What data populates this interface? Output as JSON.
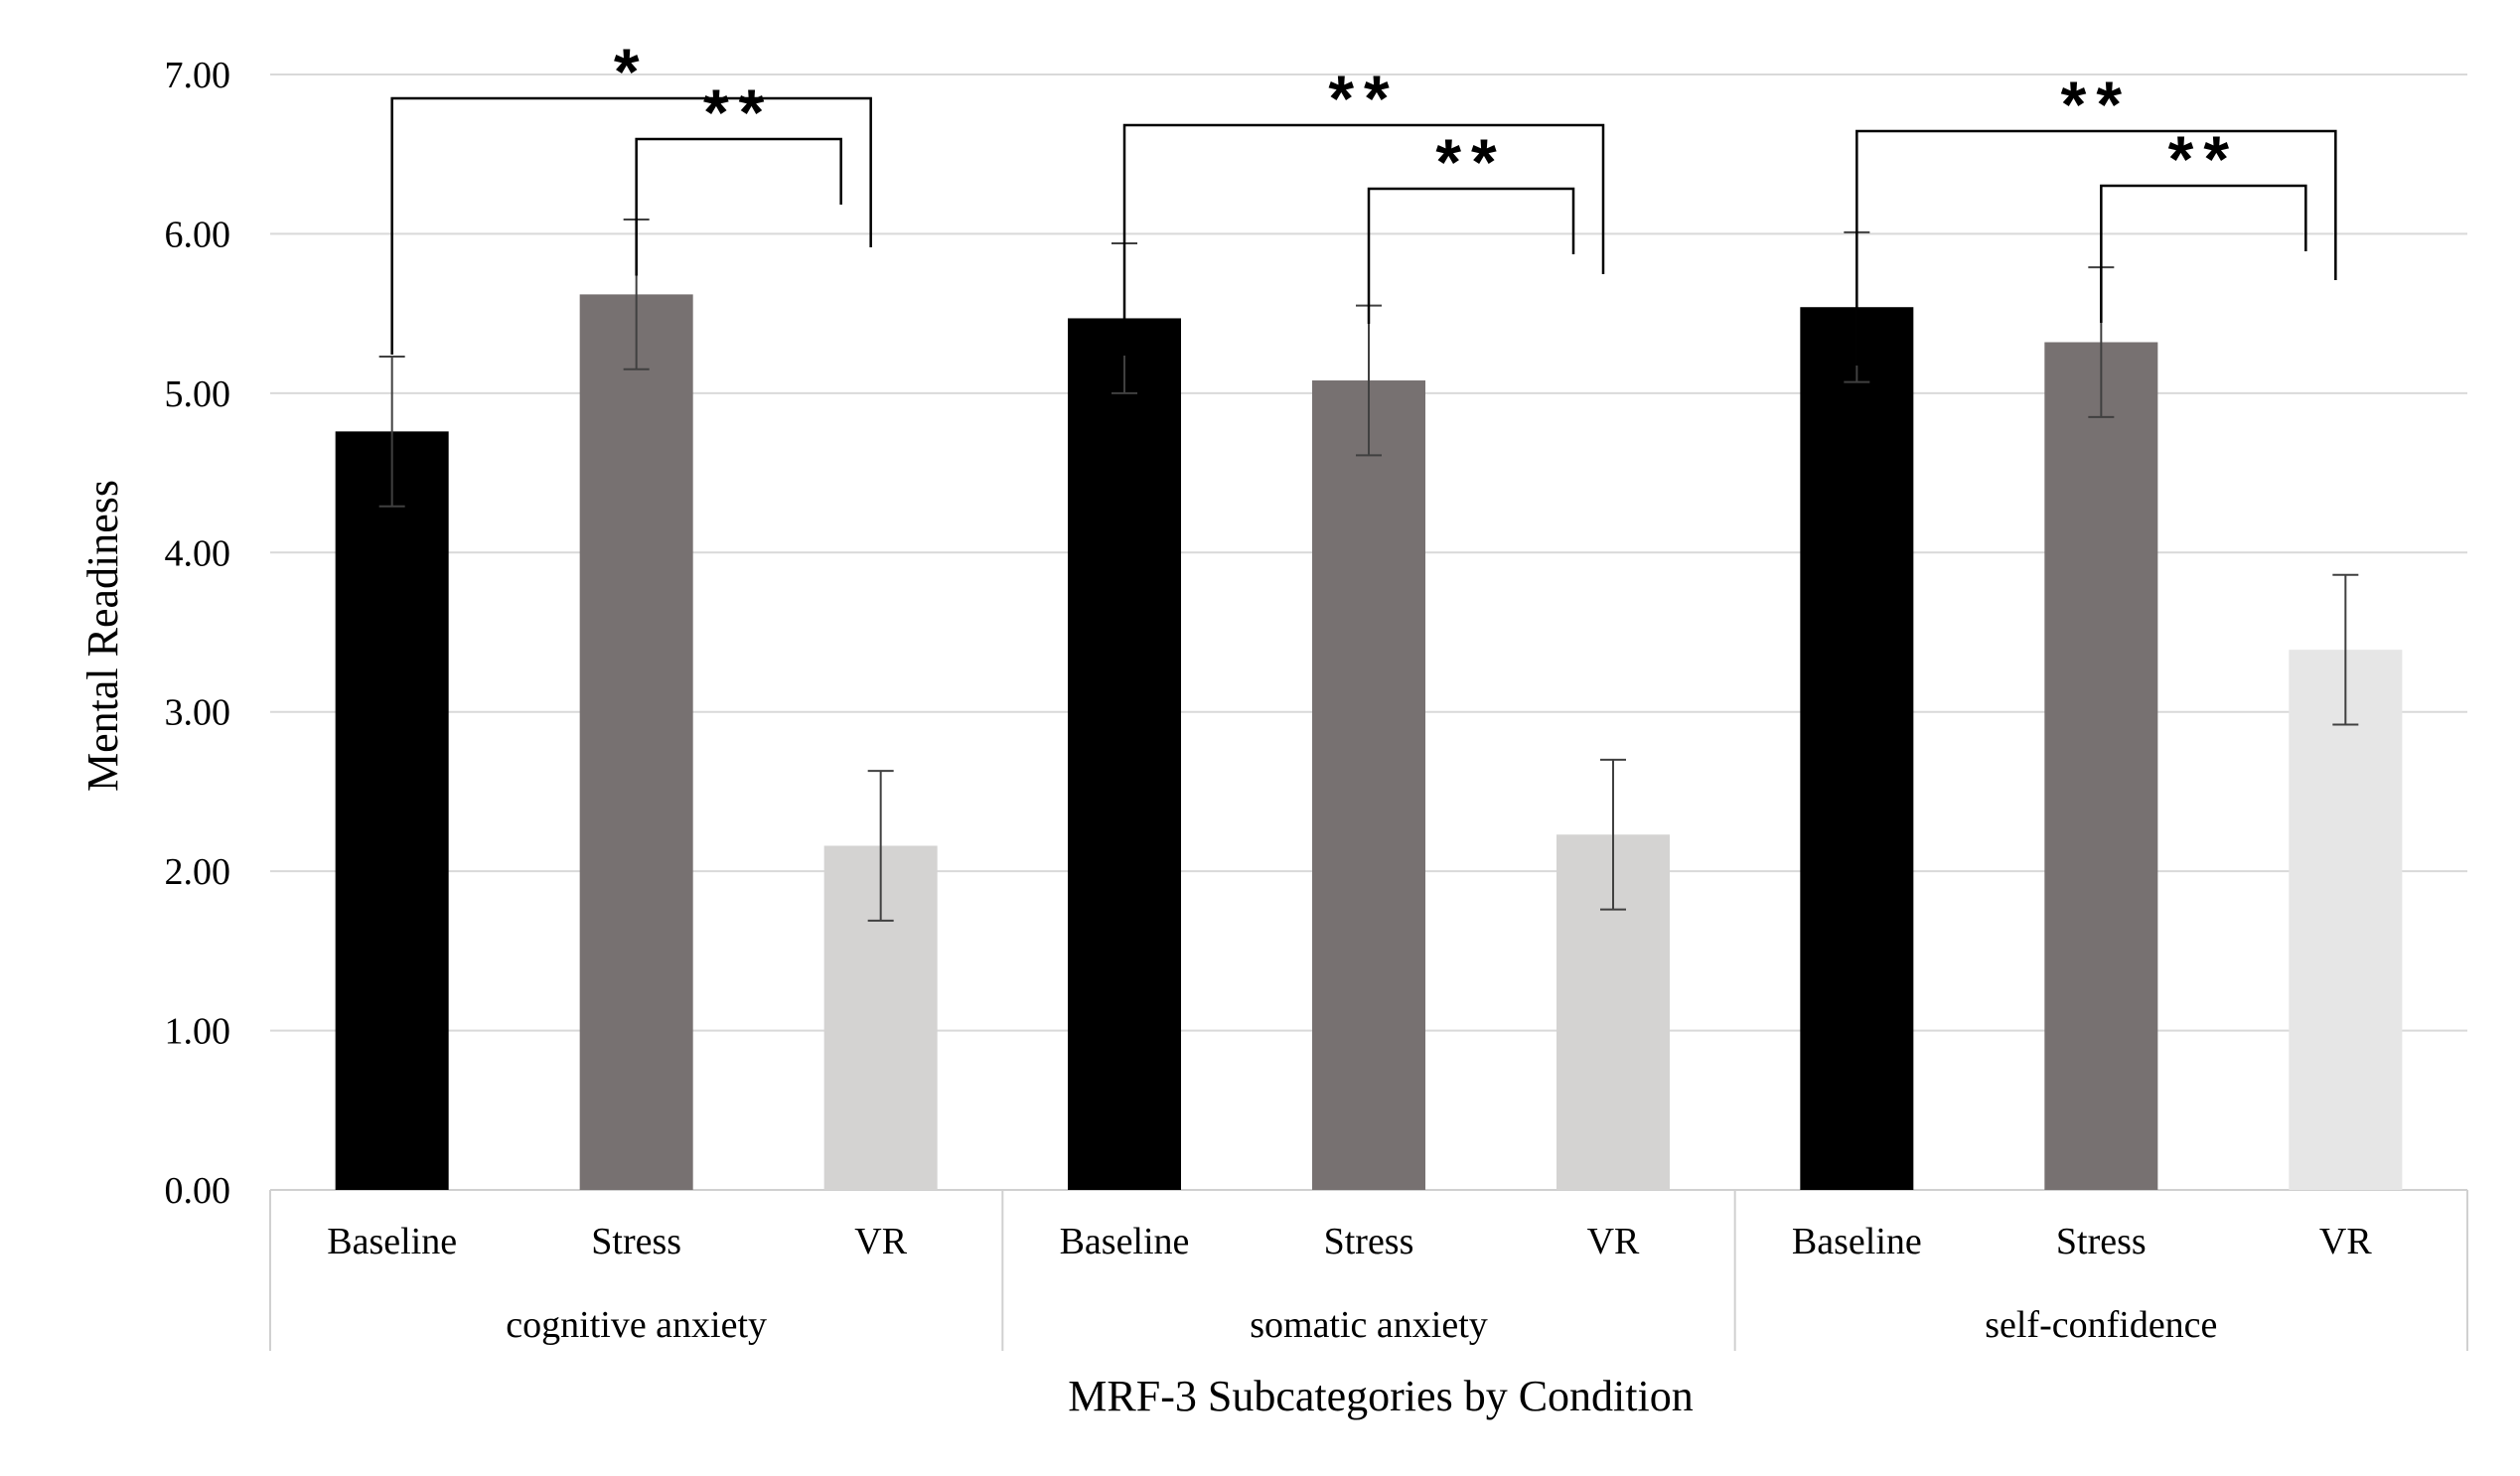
{
  "chart_data": {
    "type": "bar",
    "xlabel": "MRF-3 Subcategories by Condition",
    "ylabel": "Mental Readiness",
    "ylim": [
      0,
      7
    ],
    "yticks": [
      "0.00",
      "1.00",
      "2.00",
      "3.00",
      "4.00",
      "5.00",
      "6.00",
      "7.00"
    ],
    "grid": true,
    "groups": [
      {
        "name": "cognitive anxiety",
        "bars": [
          {
            "condition": "Baseline",
            "value": 4.76,
            "error": 0.47
          },
          {
            "condition": "Stress",
            "value": 5.62,
            "error": 0.47
          },
          {
            "condition": "VR",
            "value": 2.16,
            "error": 0.47
          }
        ],
        "brackets": [
          {
            "from": "Baseline",
            "to": "VR",
            "label": "*"
          },
          {
            "from": "Stress",
            "to": "VR",
            "label": "**"
          }
        ]
      },
      {
        "name": "somatic anxiety",
        "bars": [
          {
            "condition": "Baseline",
            "value": 5.47,
            "error": 0.47
          },
          {
            "condition": "Stress",
            "value": 5.08,
            "error": 0.47
          },
          {
            "condition": "VR",
            "value": 2.23,
            "error": 0.47
          }
        ],
        "brackets": [
          {
            "from": "Baseline",
            "to": "VR",
            "label": "**"
          },
          {
            "from": "Stress",
            "to": "VR",
            "label": "**"
          }
        ]
      },
      {
        "name": "self-confidence",
        "bars": [
          {
            "condition": "Baseline",
            "value": 5.54,
            "error": 0.47
          },
          {
            "condition": "Stress",
            "value": 5.32,
            "error": 0.47
          },
          {
            "condition": "VR",
            "value": 3.39,
            "error": 0.47
          }
        ],
        "brackets": [
          {
            "from": "Baseline",
            "to": "VR",
            "label": "**"
          },
          {
            "from": "Stress",
            "to": "VR",
            "label": "**"
          }
        ]
      }
    ],
    "colors": {
      "Baseline": "#000000",
      "Stress": "#777171",
      "VR_group1": "#d4d3d2",
      "VR_group2": "#d4d3d2",
      "VR_group3": "#e6e6e6"
    }
  }
}
